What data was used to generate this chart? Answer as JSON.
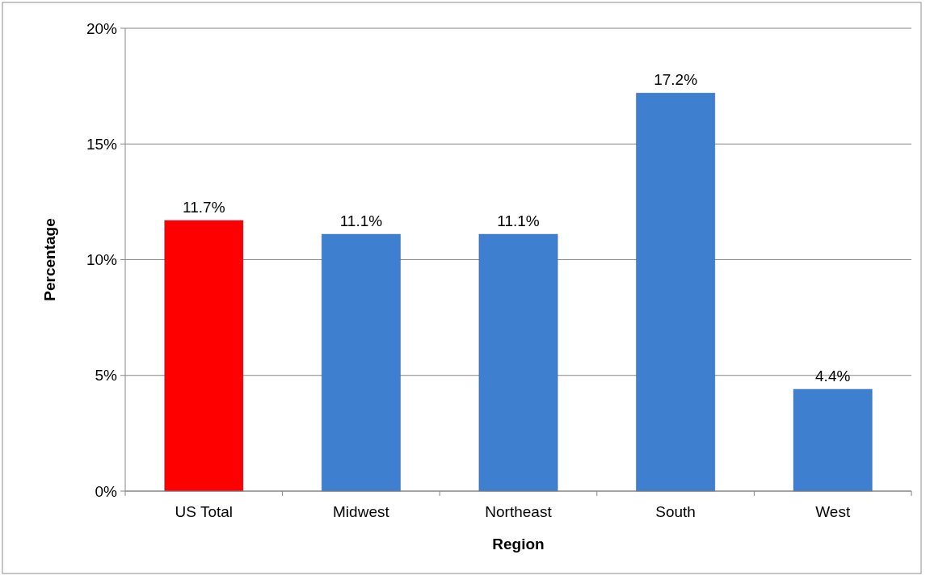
{
  "chart_data": {
    "type": "bar",
    "xlabel": "Region",
    "ylabel": "Percentage",
    "categories": [
      "US Total",
      "Midwest",
      "Northeast",
      "South",
      "West"
    ],
    "values": [
      11.7,
      11.1,
      11.1,
      17.2,
      4.4
    ],
    "value_labels": [
      "11.7%",
      "11.1%",
      "11.1%",
      "17.2%",
      "4.4%"
    ],
    "colors": [
      "#ff0000",
      "#3f7fcf",
      "#3f7fcf",
      "#3f7fcf",
      "#3f7fcf"
    ],
    "ylim": [
      0,
      20
    ],
    "yticks": [
      {
        "value": 0,
        "label": "0%"
      },
      {
        "value": 5,
        "label": "5%"
      },
      {
        "value": 10,
        "label": "10%"
      },
      {
        "value": 15,
        "label": "15%"
      },
      {
        "value": 20,
        "label": "20%"
      }
    ],
    "grid": "y"
  }
}
